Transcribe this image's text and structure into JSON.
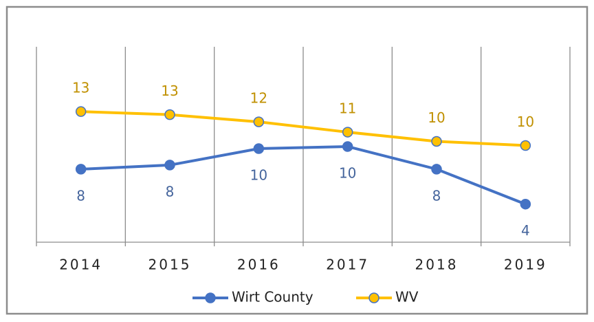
{
  "chart_data": {
    "type": "line",
    "categories": [
      "2014",
      "2015",
      "2016",
      "2017",
      "2018",
      "2019"
    ],
    "series": [
      {
        "name": "Wirt County",
        "color": "#4472c4",
        "values": [
          7.6,
          8.0,
          9.6,
          9.8,
          7.6,
          4.2
        ],
        "value_labels": [
          "8",
          "8",
          "10",
          "10",
          "8",
          "4"
        ]
      },
      {
        "name": "WV",
        "color": "#ffc000",
        "values": [
          13.2,
          12.9,
          12.2,
          11.2,
          10.3,
          9.9
        ],
        "value_labels": [
          "13",
          "13",
          "12",
          "11",
          "10",
          "10"
        ]
      }
    ],
    "ylim": [
      0.5,
      19.5
    ],
    "grid": true,
    "legend": "bottom"
  }
}
